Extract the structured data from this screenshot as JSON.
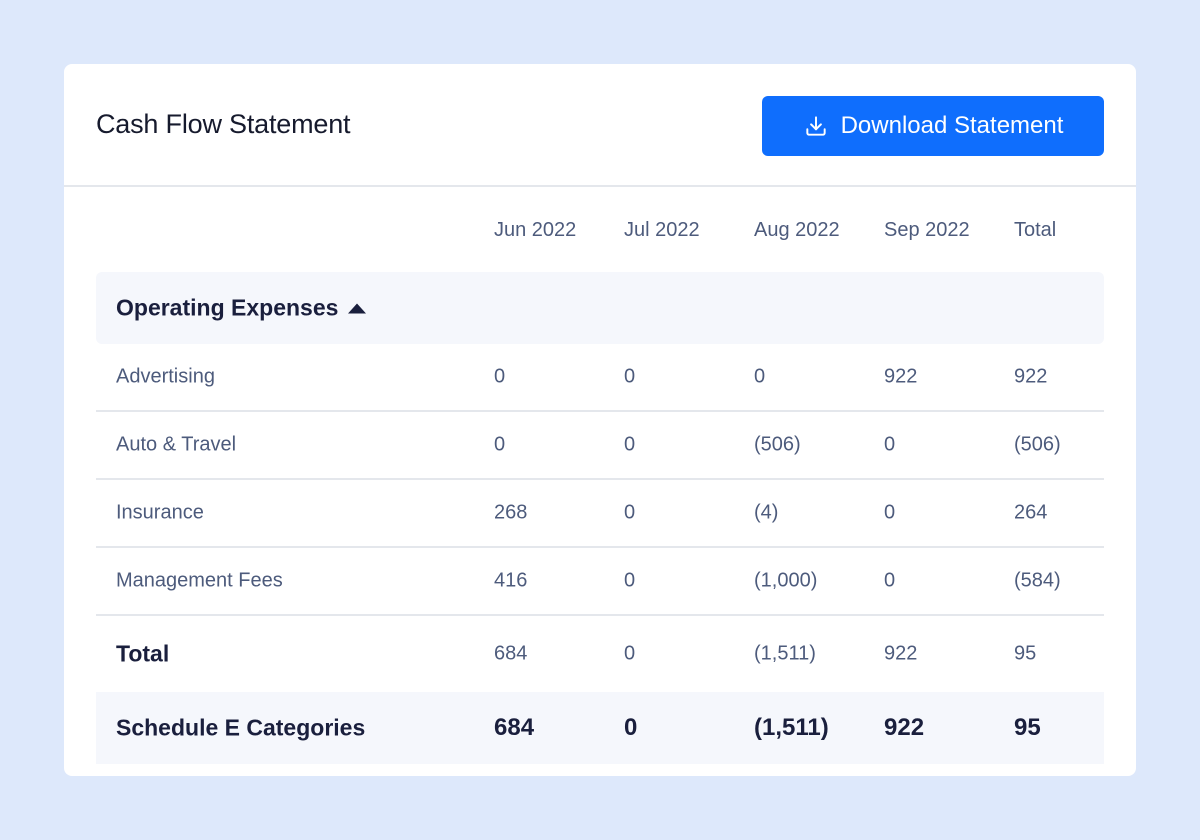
{
  "header": {
    "title": "Cash Flow Statement",
    "download_label": "Download Statement",
    "download_icon": "download-icon"
  },
  "colors": {
    "background": "#dde8fb",
    "accent": "#0f6efd",
    "text_dark": "#1a1f3d",
    "text_muted": "#4d5b7c",
    "section_bg": "#f5f7fc"
  },
  "table": {
    "columns": [
      "Jun 2022",
      "Jul 2022",
      "Aug 2022",
      "Sep 2022",
      "Total"
    ],
    "section": {
      "title": "Operating Expenses",
      "toggle_icon": "caret-up-icon",
      "rows": [
        {
          "label": "Advertising",
          "values": [
            "0",
            "0",
            "0",
            "922",
            "922"
          ]
        },
        {
          "label": "Auto & Travel",
          "values": [
            "0",
            "0",
            "(506)",
            "0",
            "(506)"
          ]
        },
        {
          "label": "Insurance",
          "values": [
            "268",
            "0",
            "(4)",
            "0",
            "264"
          ]
        },
        {
          "label": "Management Fees",
          "values": [
            "416",
            "0",
            "(1,000)",
            "0",
            "(584)"
          ]
        }
      ],
      "total": {
        "label": "Total",
        "values": [
          "684",
          "0",
          "(1,511)",
          "922",
          "95"
        ]
      }
    },
    "schedule": {
      "label": "Schedule E Categories",
      "values": [
        "684",
        "0",
        "(1,511)",
        "922",
        "95"
      ]
    }
  }
}
